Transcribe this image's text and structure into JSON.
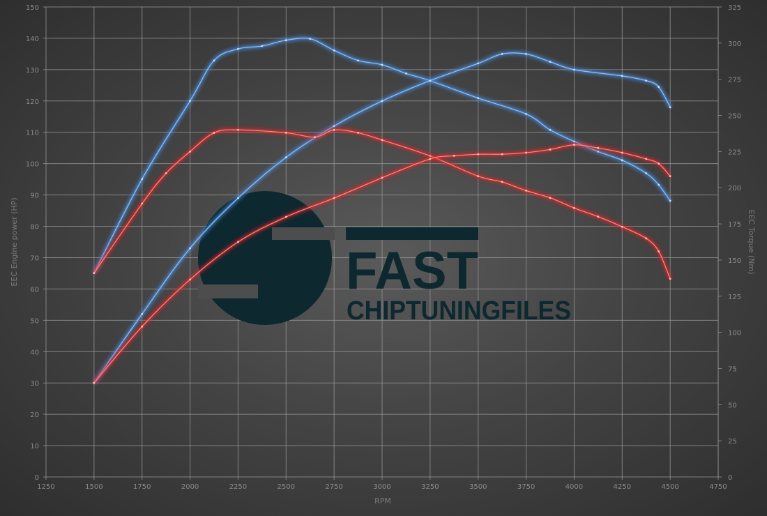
{
  "chart_data": {
    "type": "line",
    "xlabel": "RPM",
    "ylabel_left": "EEC Engine power (HP)",
    "ylabel_right": "EEC Torque (Nm)",
    "xlim": [
      1250,
      4750
    ],
    "ylim_left": [
      0,
      150
    ],
    "ylim_right": [
      0,
      325
    ],
    "x_ticks": [
      1250,
      1500,
      1750,
      2000,
      2250,
      2500,
      2750,
      3000,
      3250,
      3500,
      3750,
      4000,
      4250,
      4500,
      4750
    ],
    "y_left_ticks": [
      0,
      10,
      20,
      30,
      40,
      50,
      60,
      70,
      80,
      90,
      100,
      110,
      120,
      130,
      140,
      150
    ],
    "y_right_ticks": [
      0,
      25,
      50,
      75,
      100,
      125,
      150,
      175,
      200,
      225,
      250,
      275,
      300,
      325
    ],
    "grid": true,
    "colors": {
      "tuned": "#4a8fe0",
      "stock": "#e8282a"
    },
    "series": [
      {
        "axis": "right",
        "group": "tuned",
        "x": [
          1500,
          1750,
          2000,
          2125,
          2250,
          2375,
          2500,
          2625,
          2750,
          2875,
          3000,
          3125,
          3250,
          3500,
          3750,
          3875,
          4000,
          4125,
          4250,
          4375,
          4440,
          4500
        ],
        "y": [
          141,
          206,
          260,
          288,
          296,
          298,
          302,
          303,
          295,
          288,
          285,
          279,
          274,
          262,
          251,
          240,
          232,
          225,
          219,
          210,
          202,
          191
        ]
      },
      {
        "axis": "left",
        "group": "tuned",
        "x": [
          1500,
          1750,
          2000,
          2250,
          2500,
          2750,
          3000,
          3250,
          3500,
          3625,
          3750,
          3875,
          4000,
          4250,
          4375,
          4440,
          4500
        ],
        "y": [
          30,
          52,
          73,
          89,
          102,
          112,
          120,
          126.5,
          132,
          135,
          135,
          132.5,
          130,
          128,
          126.5,
          124.5,
          118
        ]
      },
      {
        "axis": "right",
        "group": "stock",
        "x": [
          1500,
          1750,
          1875,
          2000,
          2125,
          2250,
          2500,
          2650,
          2750,
          2875,
          3000,
          3250,
          3500,
          3625,
          3750,
          3875,
          4000,
          4125,
          4250,
          4375,
          4440,
          4500
        ],
        "y": [
          141,
          189,
          210,
          225,
          238,
          240,
          238,
          235,
          240,
          238,
          233,
          222,
          208,
          204,
          198,
          193,
          186,
          180,
          173,
          165,
          156,
          137
        ]
      },
      {
        "axis": "left",
        "group": "stock",
        "x": [
          1500,
          1750,
          2000,
          2250,
          2500,
          2750,
          3000,
          3250,
          3375,
          3500,
          3625,
          3750,
          3875,
          4000,
          4125,
          4250,
          4375,
          4440,
          4500
        ],
        "y": [
          30,
          48,
          63,
          75,
          83,
          89,
          95.5,
          101.5,
          102.5,
          103,
          103,
          103.5,
          104.5,
          106,
          105,
          103.5,
          101.5,
          100,
          96
        ]
      }
    ]
  },
  "watermark": {
    "line1": "FAST",
    "line2": "CHIPTUNINGFILES",
    "color": "#0e2830"
  }
}
